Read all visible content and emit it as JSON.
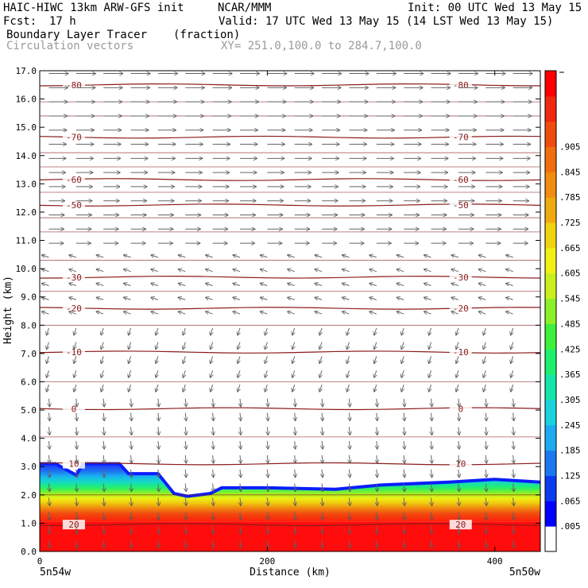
{
  "header": {
    "model": "HAIC-HIWC 13km ARW-GFS init",
    "org": "NCAR/MMM",
    "init": "Init: 00 UTC Wed 13 May 15",
    "fcst_label": "Fcst:",
    "fcst_value": "17 h",
    "valid": "Valid: 17 UTC Wed 13 May 15 (14 LST Wed 13 May 15)",
    "field": "Boundary Layer Tracer",
    "units": "(fraction)",
    "overlay": "Circulation vectors",
    "xy": "XY= 251.0,100.0 to 284.7,100.0"
  },
  "chart_data": {
    "type": "heatmap",
    "xlabel": "Distance (km)",
    "ylabel": "Height (km)",
    "xlim": [
      0,
      440
    ],
    "ylim": [
      0,
      17
    ],
    "x_ticks": [
      "0",
      "200",
      "400"
    ],
    "x_tick_values": [
      0,
      200,
      400
    ],
    "y_ticks": [
      "0.0",
      "1.0",
      "2.0",
      "3.0",
      "4.0",
      "5.0",
      "6.0",
      "7.0",
      "8.0",
      "9.0",
      "10.0",
      "11.0",
      "12.0",
      "13.0",
      "14.0",
      "15.0",
      "16.0",
      "17.0"
    ],
    "endpoints": [
      "5n54w",
      "5n50w"
    ],
    "colorbar": {
      "labels": [
        ".005",
        ".065",
        ".125",
        ".185",
        ".245",
        ".305",
        ".365",
        ".425",
        ".485",
        ".545",
        ".605",
        ".665",
        ".725",
        ".785",
        ".845",
        ".905"
      ],
      "colors": [
        "#ffffff",
        "#0000ff",
        "#0b3cf0",
        "#1a78f0",
        "#1eaaf0",
        "#19d2dc",
        "#14e6aa",
        "#1ef06e",
        "#3cf03c",
        "#8cf028",
        "#c8f01e",
        "#f0f014",
        "#f0d20f",
        "#f0aa0f",
        "#f08c0f",
        "#f06e0f",
        "#f04b0f",
        "#f0280f",
        "#ff0000"
      ]
    },
    "tracer_top_km": [
      [
        0,
        3.1
      ],
      [
        14,
        3.1
      ],
      [
        32,
        2.7
      ],
      [
        38,
        3.1
      ],
      [
        70,
        3.1
      ],
      [
        78,
        2.75
      ],
      [
        104,
        2.75
      ],
      [
        118,
        2.05
      ],
      [
        130,
        1.95
      ],
      [
        150,
        2.05
      ],
      [
        160,
        2.25
      ],
      [
        200,
        2.25
      ],
      [
        260,
        2.2
      ],
      [
        300,
        2.35
      ],
      [
        360,
        2.45
      ],
      [
        400,
        2.55
      ],
      [
        440,
        2.45
      ]
    ],
    "temperature_contours_c": [
      {
        "value": 20,
        "label": "20",
        "height_km": 0.95
      },
      {
        "value": 10,
        "label": "10",
        "height_km": 3.1
      },
      {
        "value": 0,
        "label": "0",
        "height_km": 5.05
      },
      {
        "value": -10,
        "label": "-10",
        "height_km": 7.05
      },
      {
        "value": -20,
        "label": "-20",
        "height_km": 8.6
      },
      {
        "value": -30,
        "label": "-30",
        "height_km": 9.7
      },
      {
        "value": -50,
        "label": "-50",
        "height_km": 12.25
      },
      {
        "value": -60,
        "label": "-60",
        "height_km": 13.15
      },
      {
        "value": -70,
        "label": "-70",
        "height_km": 14.65
      },
      {
        "value": -80,
        "label": "-80",
        "height_km": 16.5
      }
    ],
    "vector_direction_by_height_km": [
      {
        "height_km": 17,
        "direction": "east"
      },
      {
        "height_km": 11,
        "direction": "east"
      },
      {
        "height_km": 9,
        "direction": "west"
      },
      {
        "height_km": 6,
        "direction": "south"
      },
      {
        "height_km": 2,
        "direction": "south"
      },
      {
        "height_km": 0,
        "direction": "south"
      }
    ]
  }
}
